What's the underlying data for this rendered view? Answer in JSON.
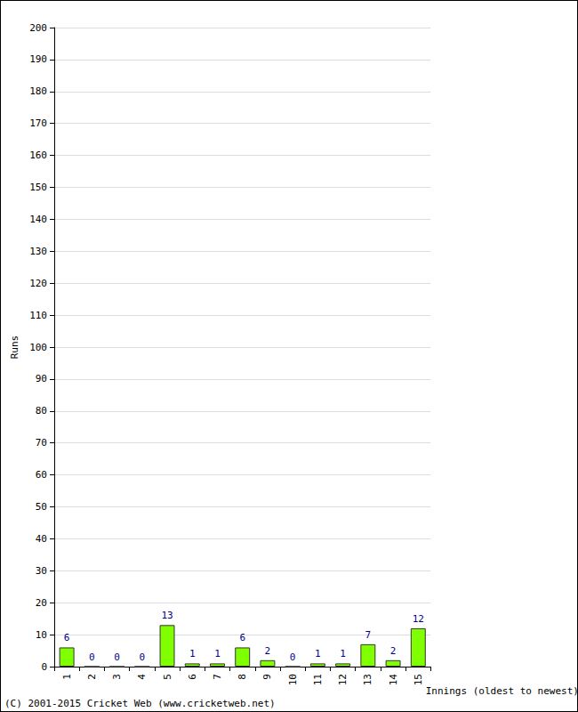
{
  "chart_data": {
    "type": "bar",
    "x_label": "Innings (oldest to newest)",
    "y_label": "Runs",
    "categories": [
      "1",
      "2",
      "3",
      "4",
      "5",
      "6",
      "7",
      "8",
      "9",
      "10",
      "11",
      "12",
      "13",
      "14",
      "15"
    ],
    "values": [
      6,
      0,
      0,
      0,
      13,
      1,
      1,
      6,
      2,
      0,
      1,
      1,
      7,
      2,
      12
    ],
    "color": "#80ff00",
    "ylim": [
      0,
      200
    ],
    "yticks": [
      0,
      10,
      20,
      30,
      40,
      50,
      60,
      70,
      80,
      90,
      100,
      110,
      120,
      130,
      140,
      150,
      160,
      170,
      180,
      190,
      200
    ],
    "grid": true,
    "data_labels": true,
    "annotations": [
      "(C) 2001-2015 Cricket Web (www.cricketweb.net)"
    ]
  }
}
